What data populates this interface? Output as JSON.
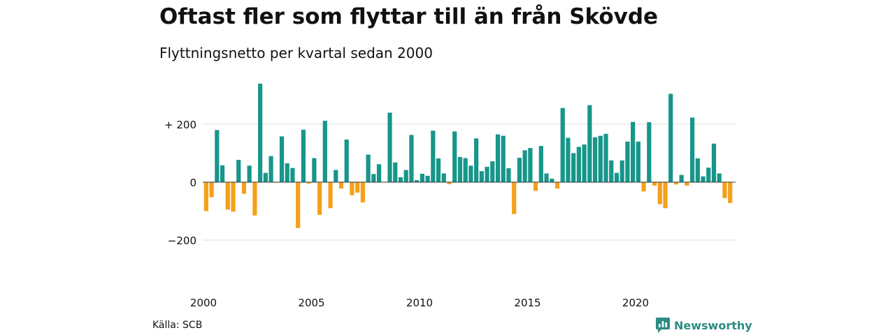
{
  "title": "Oftast fler som flyttar till än från Skövde",
  "subtitle": "Flyttningsnetto per kvartal sedan 2000",
  "source": "Källa: SCB",
  "brand": {
    "name": "Newsworthy",
    "icon": "newsworthy-chart-icon"
  },
  "colors": {
    "positive": "#17968a",
    "negative": "#f5a01a",
    "grid": "#dddddd",
    "zero_line": "#333333",
    "text": "#111111"
  },
  "chart_data": {
    "type": "bar",
    "title": "Oftast fler som flyttar till än från Skövde",
    "subtitle": "Flyttningsnetto per kvartal sedan 2000",
    "xlabel": "",
    "ylabel": "",
    "grid": true,
    "ylim": [
      -300,
      350
    ],
    "y_ticks": [
      {
        "value": 200,
        "label": "+ 200"
      },
      {
        "value": 0,
        "label": "0"
      },
      {
        "value": -200,
        "label": "−200"
      }
    ],
    "x_ticks": [
      {
        "year": 2000,
        "label": "2000"
      },
      {
        "year": 2005,
        "label": "2005"
      },
      {
        "year": 2010,
        "label": "2010"
      },
      {
        "year": 2015,
        "label": "2015"
      },
      {
        "year": 2020,
        "label": "2020"
      }
    ],
    "start_year": 2000,
    "quarters_per_year": 4,
    "values": [
      -100,
      -52,
      180,
      58,
      -95,
      -102,
      77,
      -40,
      57,
      -115,
      340,
      32,
      90,
      -2,
      158,
      65,
      49,
      -158,
      181,
      -5,
      83,
      -113,
      212,
      -90,
      42,
      -22,
      147,
      -45,
      -36,
      -70,
      95,
      28,
      62,
      0,
      240,
      68,
      17,
      42,
      163,
      7,
      29,
      22,
      178,
      82,
      30,
      -7,
      175,
      87,
      83,
      57,
      151,
      38,
      53,
      72,
      165,
      160,
      48,
      -110,
      84,
      110,
      118,
      -30,
      125,
      30,
      12,
      -22,
      256,
      153,
      100,
      122,
      130,
      266,
      155,
      160,
      167,
      75,
      32,
      75,
      140,
      208,
      140,
      -32,
      207,
      -12,
      -76,
      -90,
      305,
      -8,
      25,
      -12,
      223,
      82,
      20,
      50,
      133,
      30,
      -55,
      -72
    ]
  }
}
